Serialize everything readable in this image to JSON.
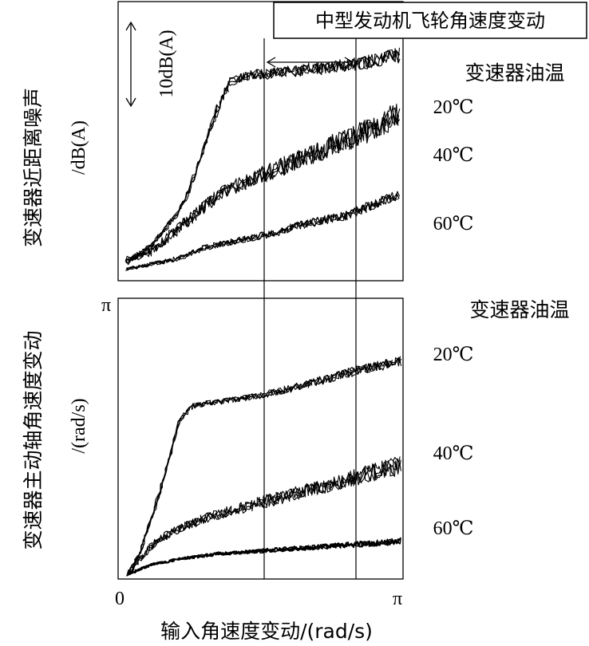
{
  "figure_title": "中型发动机飞轮角速度变动",
  "chart_data": [
    {
      "type": "line",
      "panel": "top",
      "ylabel_line1": "变速器近距离噪声",
      "ylabel_line2": "/dB(A)",
      "scale_bar_label": "10dB(A)",
      "legend_title": "变速器油温",
      "grid": false,
      "legend_placement": "right",
      "x": [
        0,
        0.15,
        0.3,
        0.45,
        0.6,
        0.75,
        0.9,
        1.05,
        1.2,
        1.35,
        1.5,
        1.65,
        1.8,
        1.95,
        2.1,
        2.25,
        2.4,
        2.55,
        2.7,
        2.85,
        3.0,
        3.1416
      ],
      "series": [
        {
          "name": "20℃",
          "values": [
            0.06,
            0.08,
            0.12,
            0.18,
            0.24,
            0.34,
            0.48,
            0.62,
            0.72,
            0.74,
            0.75,
            0.75,
            0.76,
            0.76,
            0.77,
            0.77,
            0.78,
            0.78,
            0.79,
            0.8,
            0.81,
            0.82
          ]
        },
        {
          "name": "40℃",
          "values": [
            0.06,
            0.08,
            0.1,
            0.14,
            0.18,
            0.22,
            0.26,
            0.3,
            0.33,
            0.35,
            0.37,
            0.39,
            0.41,
            0.43,
            0.45,
            0.47,
            0.49,
            0.51,
            0.53,
            0.55,
            0.58,
            0.6
          ]
        },
        {
          "name": "60℃",
          "values": [
            0.03,
            0.04,
            0.05,
            0.06,
            0.07,
            0.09,
            0.11,
            0.12,
            0.13,
            0.14,
            0.15,
            0.16,
            0.17,
            0.19,
            0.2,
            0.21,
            0.22,
            0.23,
            0.25,
            0.27,
            0.29,
            0.3
          ]
        }
      ]
    },
    {
      "type": "line",
      "panel": "bottom",
      "xlabel": "输入角速度变动/(rad/s)",
      "ylabel_line1": "变速器主动轴角速度变动",
      "ylabel_line2": "/(rad/s)",
      "legend_title": "变速器油温",
      "y_max_label": "π",
      "x_tick_labels": [
        "0",
        "π"
      ],
      "xlim": [
        0,
        3.1416
      ],
      "ylim": [
        0,
        3.1416
      ],
      "grid": false,
      "legend_placement": "right",
      "x": [
        0,
        0.15,
        0.3,
        0.45,
        0.6,
        0.75,
        0.9,
        1.05,
        1.2,
        1.35,
        1.5,
        1.65,
        1.8,
        1.95,
        2.1,
        2.25,
        2.4,
        2.55,
        2.7,
        2.85,
        3.0,
        3.1416
      ],
      "series": [
        {
          "name": "20℃",
          "values": [
            0.03,
            0.3,
            0.75,
            1.25,
            1.8,
            1.95,
            1.98,
            2.0,
            2.02,
            2.04,
            2.07,
            2.1,
            2.13,
            2.17,
            2.21,
            2.25,
            2.29,
            2.33,
            2.37,
            2.4,
            2.43,
            2.46
          ]
        },
        {
          "name": "40℃",
          "values": [
            0.03,
            0.22,
            0.38,
            0.48,
            0.56,
            0.62,
            0.67,
            0.72,
            0.76,
            0.8,
            0.84,
            0.88,
            0.92,
            0.96,
            1.0,
            1.04,
            1.08,
            1.12,
            1.16,
            1.2,
            1.24,
            1.27
          ]
        },
        {
          "name": "60℃",
          "values": [
            0.03,
            0.1,
            0.15,
            0.18,
            0.21,
            0.23,
            0.25,
            0.27,
            0.28,
            0.29,
            0.3,
            0.31,
            0.32,
            0.33,
            0.34,
            0.35,
            0.36,
            0.37,
            0.38,
            0.39,
            0.4,
            0.42
          ]
        }
      ]
    }
  ]
}
